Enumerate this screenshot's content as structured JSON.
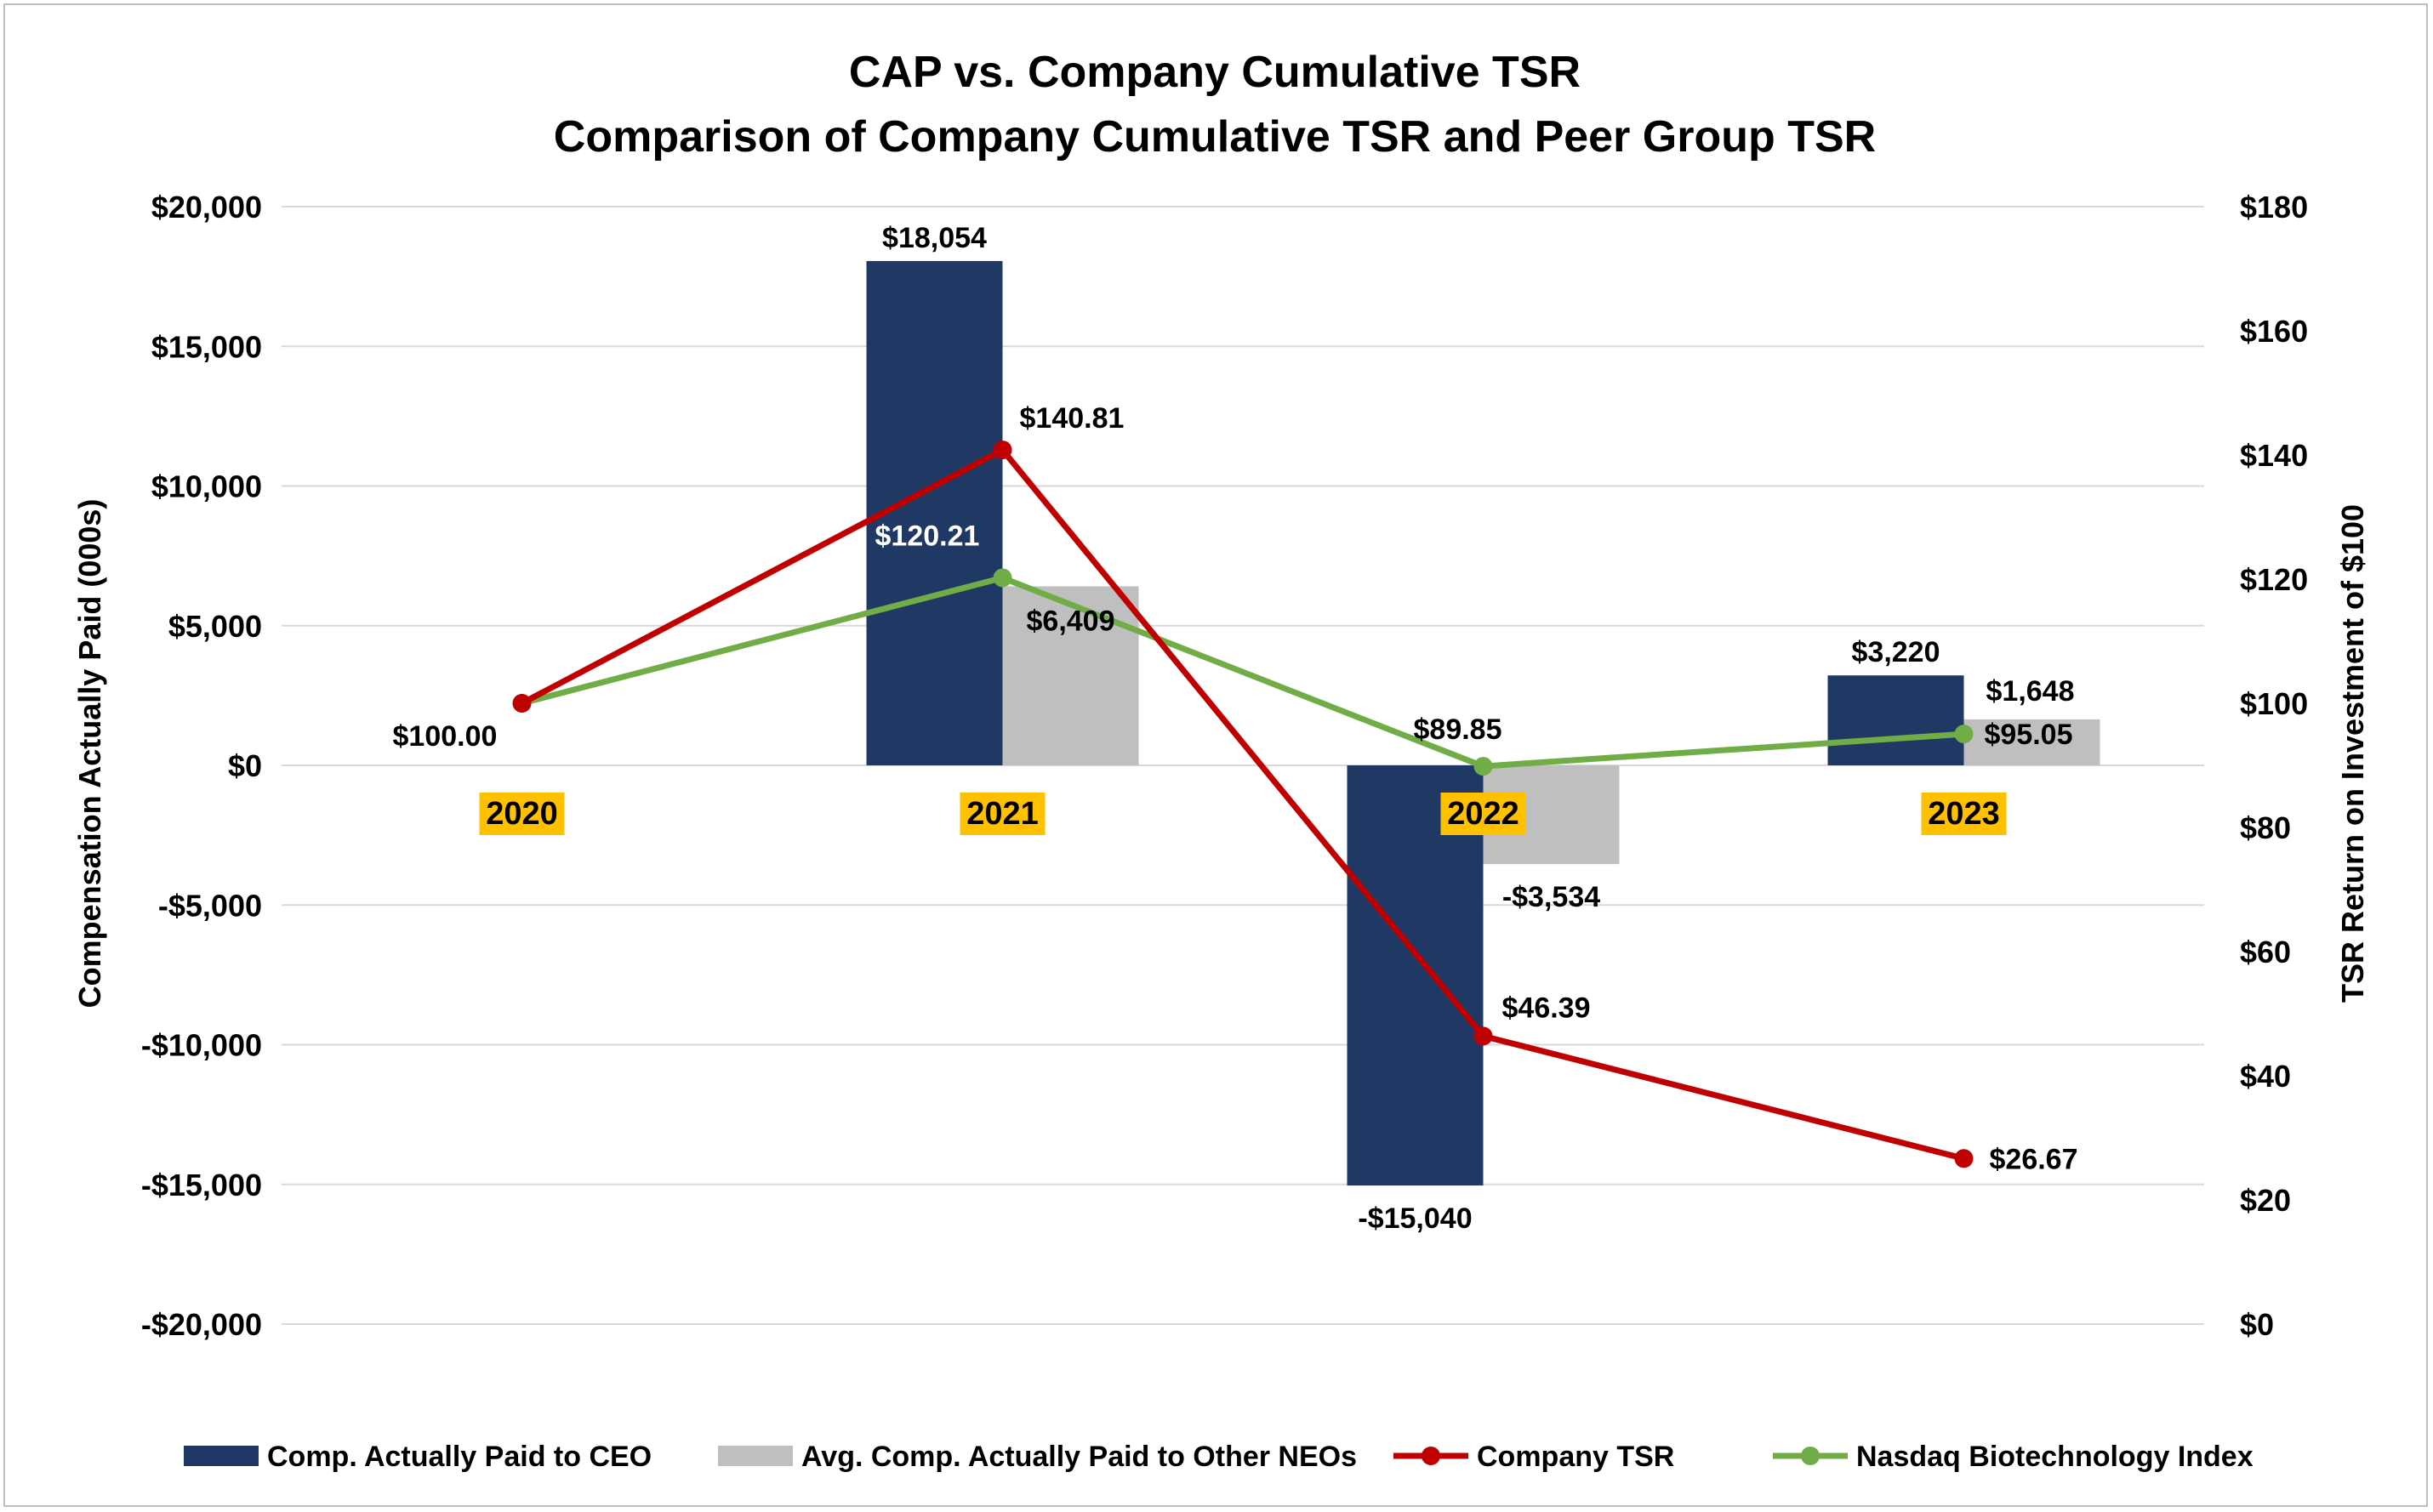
{
  "chart_data": {
    "type": "bar",
    "title": "CAP vs. Company Cumulative TSR",
    "subtitle": "Comparison of Company Cumulative TSR and Peer Group TSR",
    "categories": [
      "2020",
      "2021",
      "2022",
      "2023"
    ],
    "ylabel": "Compensation Actually Paid (000s)",
    "y2label": "TSR Return on Investment of $100",
    "ylim": [
      -20000,
      20000
    ],
    "y2lim": [
      0,
      180
    ],
    "yticks": [
      "$20,000",
      "$15,000",
      "$10,000",
      "$5,000",
      "$0",
      "-$5,000",
      "-$10,000",
      "-$15,000",
      "-$20,000"
    ],
    "y2ticks": [
      "$180",
      "$160",
      "$140",
      "$120",
      "$100",
      "$80",
      "$60",
      "$40",
      "$20",
      "$0"
    ],
    "bar_series": [
      {
        "name": "Comp. Actually Paid to CEO",
        "color": "#203864",
        "values": [
          null,
          18054,
          -15040,
          3220
        ],
        "labels": [
          "",
          "$18,054",
          "-$15,040",
          "$3,220"
        ]
      },
      {
        "name": "Avg. Comp. Actually Paid to Other NEOs",
        "color": "#bfbfbf",
        "values": [
          null,
          6409,
          -3534,
          1648
        ],
        "labels": [
          "",
          "$6,409",
          "-$3,534",
          "$1,648"
        ]
      }
    ],
    "line_series": [
      {
        "name": "Company TSR",
        "color": "#c00000",
        "axis": "secondary",
        "values": [
          100.0,
          140.81,
          46.39,
          26.67
        ],
        "labels": [
          "$100.00",
          "$140.81",
          "$46.39",
          "$26.67"
        ]
      },
      {
        "name": "Nasdaq Biotechnology Index",
        "color": "#70ad47",
        "axis": "secondary",
        "values": [
          100.0,
          120.21,
          89.85,
          95.05
        ],
        "labels": [
          "",
          "$120.21",
          "$89.85",
          "$95.05"
        ]
      }
    ],
    "category_highlight_color": "#ffc000",
    "grid": true,
    "legend": "bottom"
  }
}
